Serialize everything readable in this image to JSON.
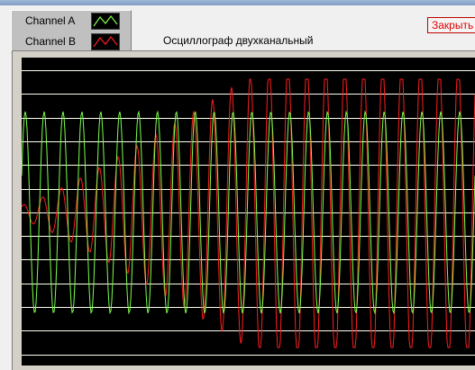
{
  "window": {
    "title": "Осциллограф двухканальный",
    "close_label": "Закрыть"
  },
  "legend": {
    "channels": [
      {
        "name": "Channel A",
        "color": "#7cff4c"
      },
      {
        "name": "Channel B",
        "color": "#ff1e1e"
      }
    ]
  },
  "scope": {
    "background": "#000000",
    "grid_color": "#fffff0",
    "horizontal_gridlines": 13,
    "channel_a": {
      "color": "#7cff4c",
      "waveform": "sine",
      "cycles_visible": 24,
      "amplitude": "constant"
    },
    "channel_b": {
      "color": "#ff1e1e",
      "waveform": "sine",
      "cycles_visible": 24,
      "amplitude": "growing then saturating"
    }
  }
}
